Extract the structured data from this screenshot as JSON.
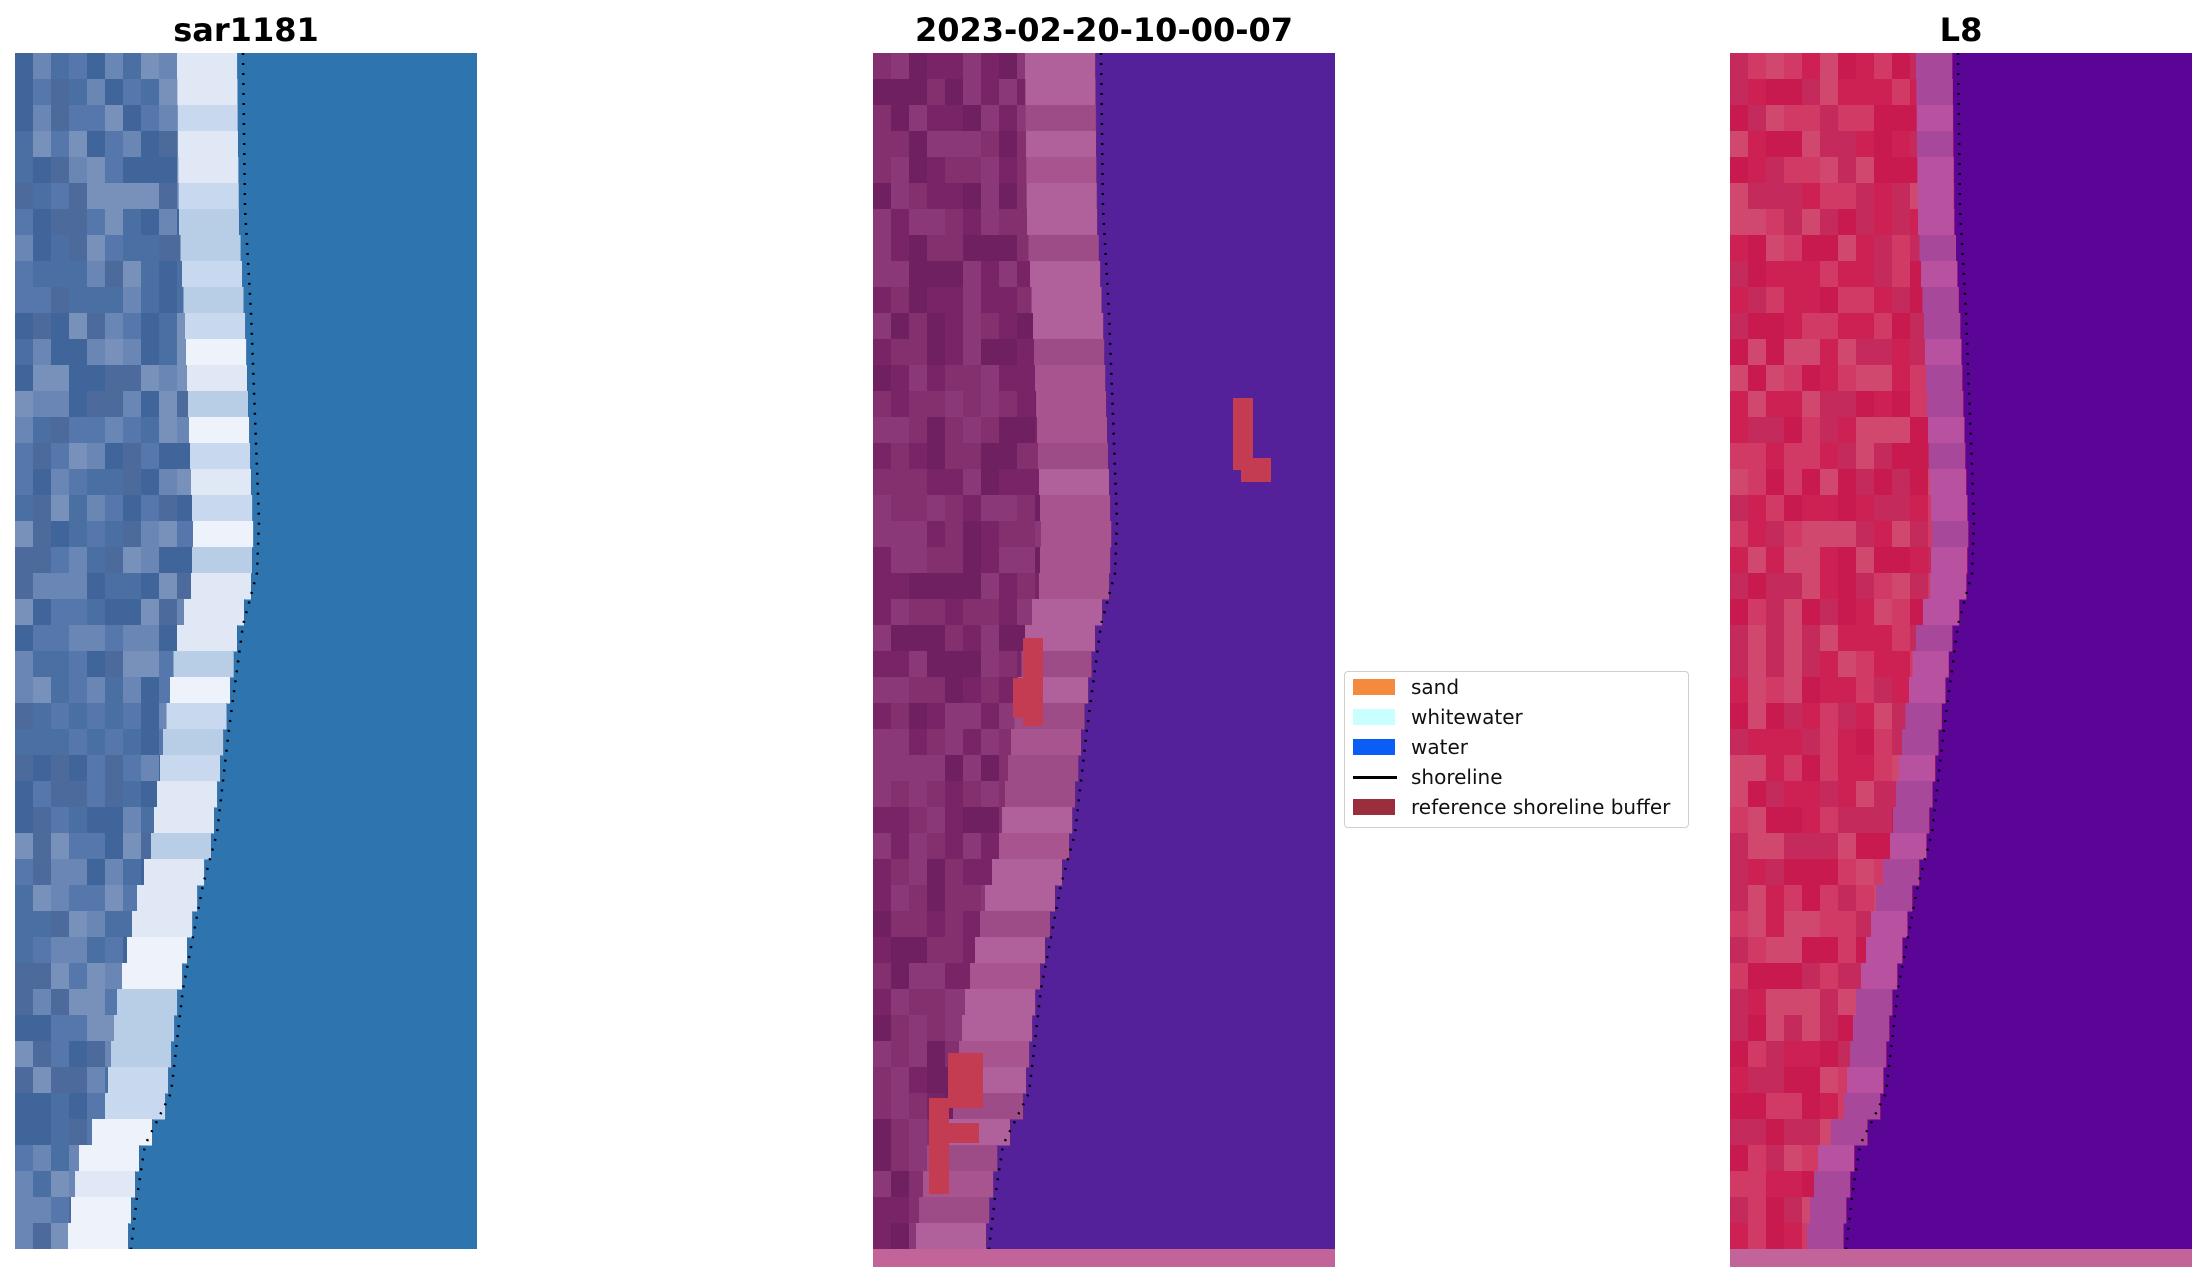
{
  "panels": [
    {
      "title": "sar1181"
    },
    {
      "title": "2023-02-20-10-00-07"
    },
    {
      "title": "L8"
    }
  ],
  "legend": {
    "items": [
      {
        "label": "sand",
        "color": "#f58a3e",
        "kind": "patch"
      },
      {
        "label": "whitewater",
        "color": "#c9ffff",
        "kind": "patch"
      },
      {
        "label": "water",
        "color": "#0a5df5",
        "kind": "patch"
      },
      {
        "label": "shoreline",
        "color": "#000000",
        "kind": "line"
      },
      {
        "label": "reference shoreline buffer",
        "color": "#9a2e3c",
        "kind": "patch"
      }
    ]
  },
  "colors": {
    "rgb_water": "#2e74ae",
    "rgb_land": "#4a6fa3",
    "rgb_surf": "#dfe8f4",
    "class_water": "#54219a",
    "class_land": "#7a2468",
    "class_sand": "#a8548e",
    "class_buffer": "#c43c52",
    "index_land": "#cc2152",
    "index_water": "#5b0597",
    "index_edge": "#b852a0"
  }
}
